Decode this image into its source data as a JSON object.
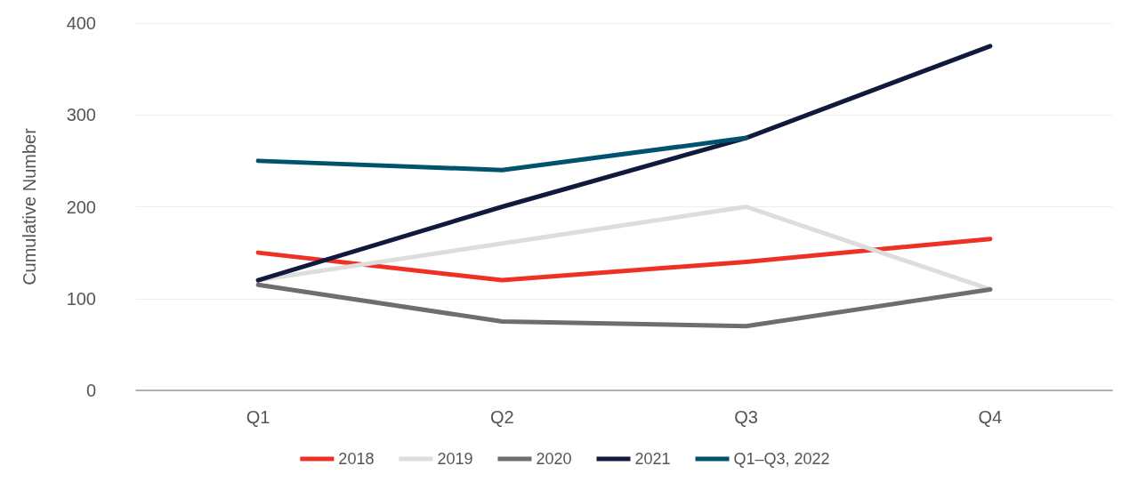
{
  "chart_data": {
    "type": "line",
    "ylabel": "Cumulative Number",
    "categories": [
      "Q1",
      "Q2",
      "Q3",
      "Q4"
    ],
    "series": [
      {
        "name": "2018",
        "color": "#ee3124",
        "values": [
          150,
          120,
          140,
          165
        ]
      },
      {
        "name": "2019",
        "color": "#dddddd",
        "values": [
          120,
          160,
          200,
          110
        ]
      },
      {
        "name": "2020",
        "color": "#6d6e71",
        "values": [
          115,
          75,
          70,
          110
        ]
      },
      {
        "name": "2021",
        "color": "#0f1a3c",
        "values": [
          120,
          200,
          275,
          375
        ]
      },
      {
        "name": "Q1–Q3, 2022",
        "color": "#00536e",
        "values": [
          250,
          240,
          275,
          null
        ]
      }
    ],
    "ylim": [
      0,
      400
    ],
    "yticks": [
      0,
      100,
      200,
      300,
      400
    ],
    "grid": "y",
    "legend": "bottom",
    "marker": "none",
    "line_style": "solid"
  }
}
